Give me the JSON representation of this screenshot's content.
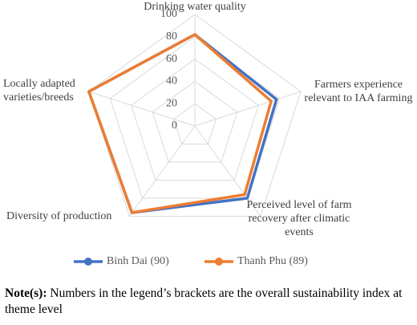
{
  "chart_data": {
    "type": "radar",
    "categories": [
      "Drinking water quality",
      "Farmers experience relevant to IAA farming",
      "Perceived level of farm recovery after climatic events",
      "Diversity of production",
      "Locally adapted varieties/breeds"
    ],
    "series": [
      {
        "name": "Binh Dai (90)",
        "color": "#4472c4",
        "values": [
          82,
          77,
          80,
          96,
          100
        ]
      },
      {
        "name": "Thanh Phu (89)",
        "color": "#ed7d31",
        "values": [
          82,
          72,
          76,
          96,
          100
        ]
      }
    ],
    "rlim": [
      0,
      100
    ],
    "rticks": [
      0,
      20,
      40,
      60,
      80,
      100
    ],
    "grid": true,
    "legend": "bottom"
  },
  "note": {
    "label": "Note(s):",
    "text": "Numbers in the legend’s brackets are the overall sustainability index at theme level"
  }
}
